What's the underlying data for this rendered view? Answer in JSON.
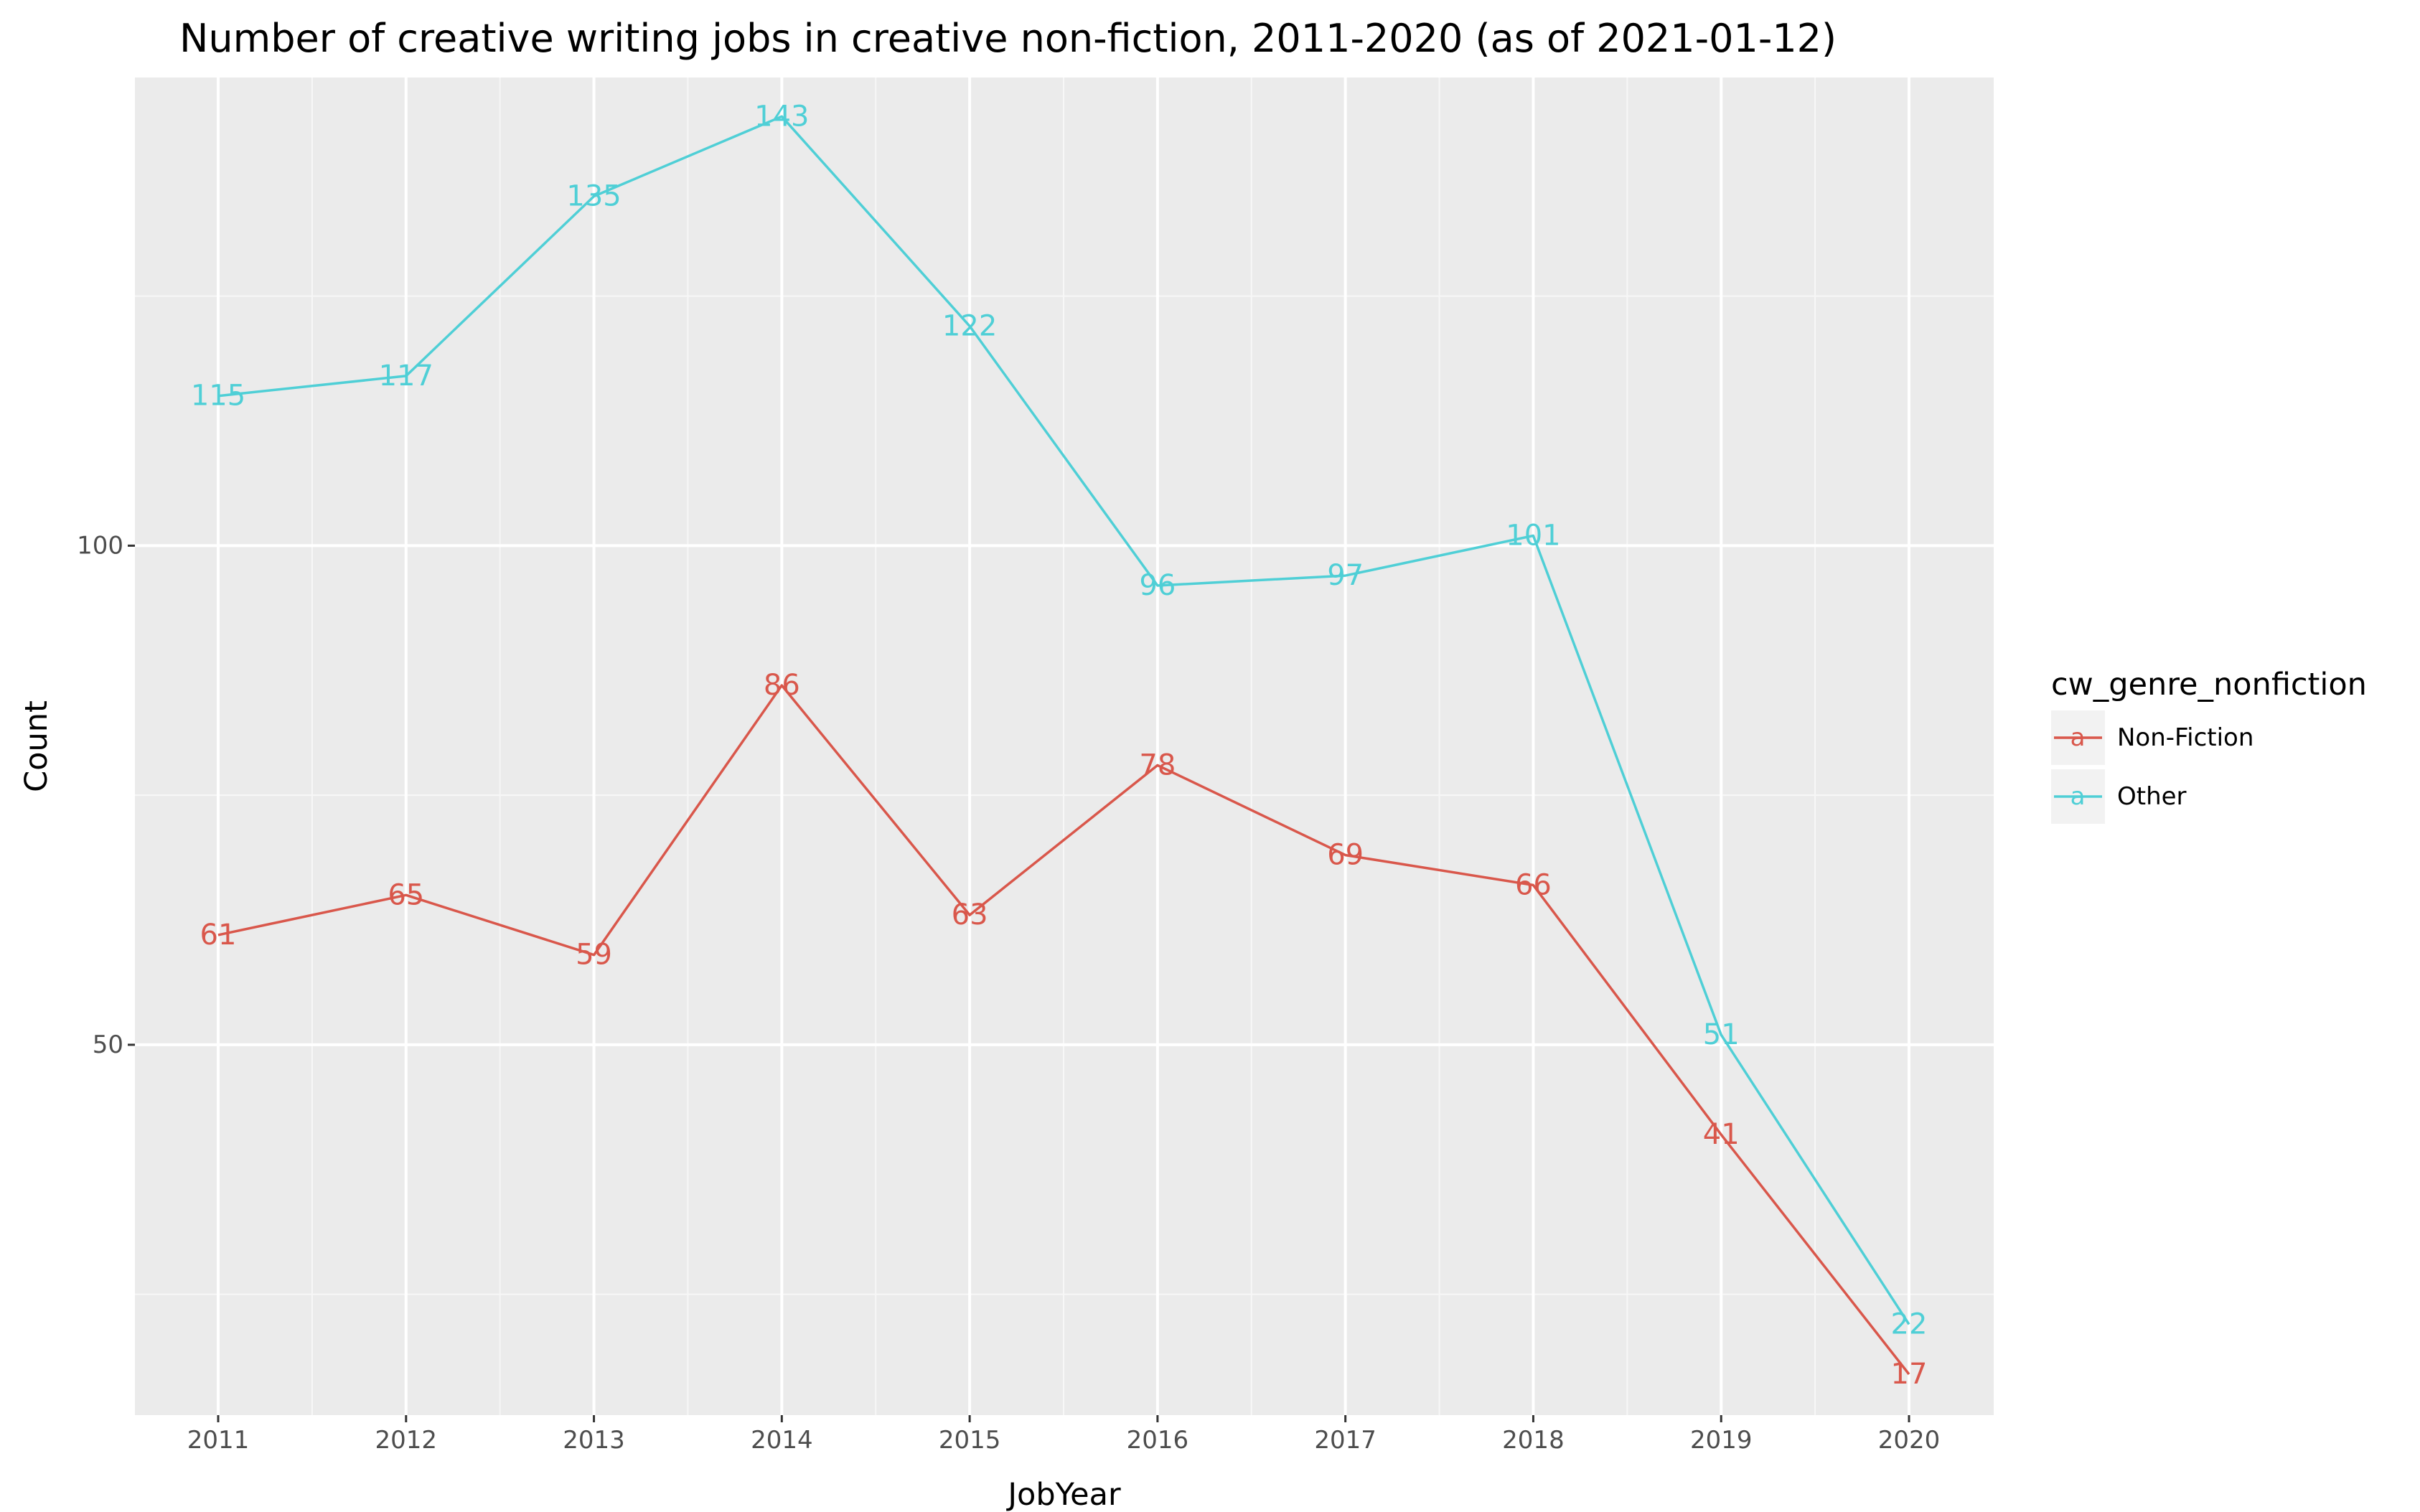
{
  "chart_data": {
    "type": "line",
    "title": "Number of creative writing jobs in creative non-fiction, 2011-2020 (as of 2021-01-12)",
    "xlabel": "JobYear",
    "ylabel": "Count",
    "x": [
      "2011",
      "2012",
      "2013",
      "2014",
      "2015",
      "2016",
      "2017",
      "2018",
      "2019",
      "2020"
    ],
    "ylim": [
      12.9,
      146.9
    ],
    "y_ticks": [
      50,
      100
    ],
    "grid": true,
    "legend": {
      "title": "cw_genre_nonfiction",
      "placement": "right",
      "key_glyph": "a"
    },
    "series": [
      {
        "name": "Non-Fiction",
        "color": "#d9574b",
        "values": [
          61,
          65,
          59,
          86,
          63,
          78,
          69,
          66,
          41,
          17
        ]
      },
      {
        "name": "Other",
        "color": "#4fcfd6",
        "values": [
          115,
          117,
          135,
          143,
          122,
          96,
          97,
          101,
          51,
          22
        ]
      }
    ]
  }
}
